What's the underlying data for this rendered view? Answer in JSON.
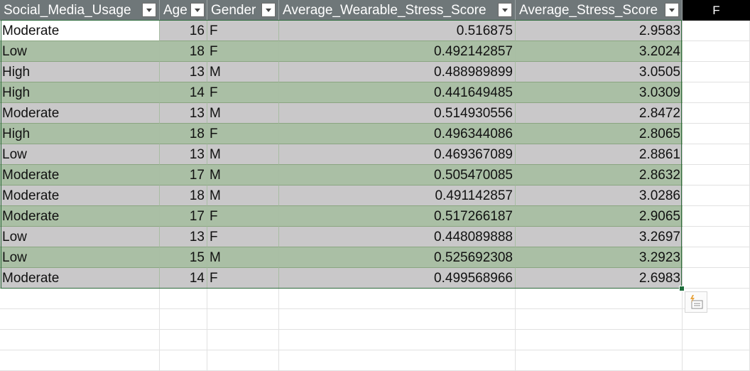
{
  "headers": [
    {
      "label": "Social_Media_Usage"
    },
    {
      "label": "Age"
    },
    {
      "label": "Gender"
    },
    {
      "label": "Average_Wearable_Stress_Score"
    },
    {
      "label": "Average_Stress_Score"
    }
  ],
  "column_f_label": "F",
  "rows": [
    {
      "usage": "Moderate",
      "age": "16",
      "gender": "F",
      "wearable": "0.516875",
      "stress": "2.9583"
    },
    {
      "usage": "Low",
      "age": "18",
      "gender": "F",
      "wearable": "0.492142857",
      "stress": "3.2024"
    },
    {
      "usage": "High",
      "age": "13",
      "gender": "M",
      "wearable": "0.488989899",
      "stress": "3.0505"
    },
    {
      "usage": "High",
      "age": "14",
      "gender": "F",
      "wearable": "0.441649485",
      "stress": "3.0309"
    },
    {
      "usage": "Moderate",
      "age": "13",
      "gender": "M",
      "wearable": "0.514930556",
      "stress": "2.8472"
    },
    {
      "usage": "High",
      "age": "18",
      "gender": "F",
      "wearable": "0.496344086",
      "stress": "2.8065"
    },
    {
      "usage": "Low",
      "age": "13",
      "gender": "M",
      "wearable": "0.469367089",
      "stress": "2.8861"
    },
    {
      "usage": "Moderate",
      "age": "17",
      "gender": "M",
      "wearable": "0.505470085",
      "stress": "2.8632"
    },
    {
      "usage": "Moderate",
      "age": "18",
      "gender": "M",
      "wearable": "0.491142857",
      "stress": "3.0286"
    },
    {
      "usage": "Moderate",
      "age": "17",
      "gender": "F",
      "wearable": "0.517266187",
      "stress": "2.9065"
    },
    {
      "usage": "Low",
      "age": "13",
      "gender": "F",
      "wearable": "0.448089888",
      "stress": "3.2697"
    },
    {
      "usage": "Low",
      "age": "15",
      "gender": "M",
      "wearable": "0.525692308",
      "stress": "3.2923"
    },
    {
      "usage": "Moderate",
      "age": "14",
      "gender": "F",
      "wearable": "0.499568966",
      "stress": "2.6983"
    }
  ],
  "colors": {
    "header_bg": "#6f7779",
    "band_grey": "#c9c8c9",
    "band_green": "#aabfa5",
    "selection_border": "#2e6b3c"
  },
  "icons": {
    "filter": "dropdown-arrow-icon",
    "quick_analysis": "quick-analysis-icon"
  }
}
